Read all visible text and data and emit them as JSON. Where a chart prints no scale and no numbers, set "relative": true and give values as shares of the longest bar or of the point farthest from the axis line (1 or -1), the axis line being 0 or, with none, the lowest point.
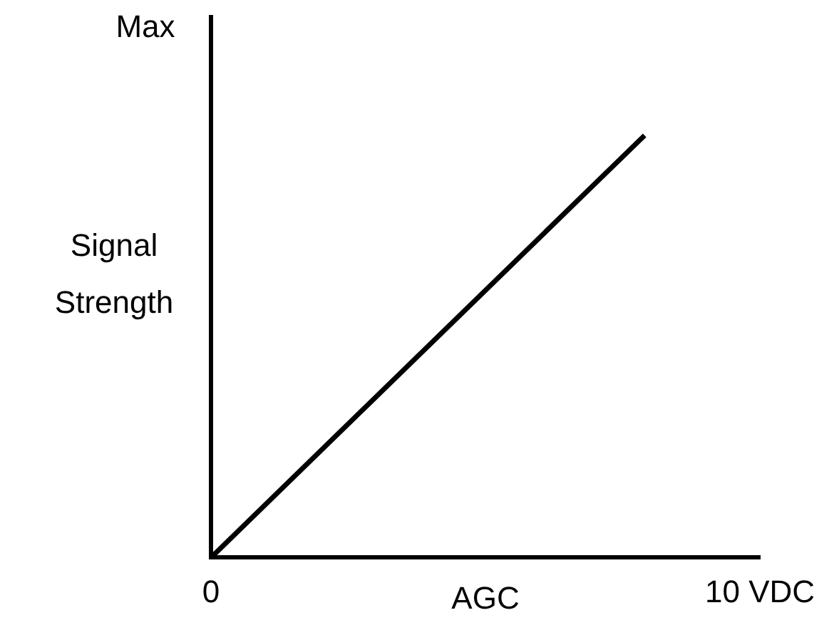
{
  "chart_data": {
    "type": "line",
    "relative": true,
    "xlabel": "AGC",
    "ylabel": "Signal Strength",
    "x": [
      0,
      7.9
    ],
    "xlim": [
      0,
      10
    ],
    "xticks": [
      0,
      {
        "value": 10,
        "label": "10 VDC"
      }
    ],
    "series": [
      {
        "color": "#000000",
        "values": [
          0,
          1
        ]
      }
    ],
    "annotations": [
      "Max"
    ],
    "grid": false,
    "legend": false
  }
}
